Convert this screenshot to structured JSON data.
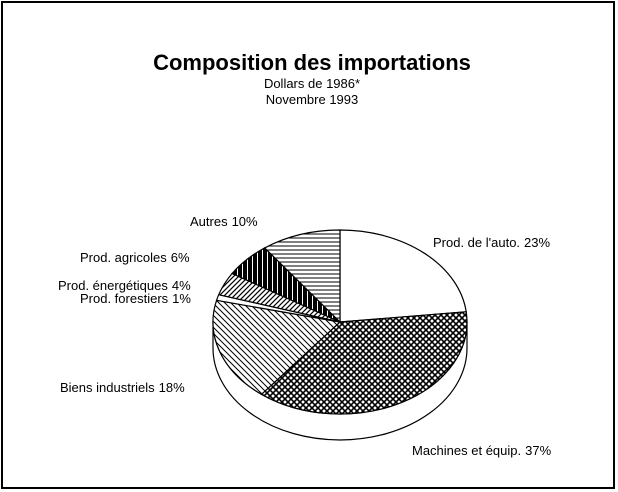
{
  "chart_data": {
    "type": "pie",
    "title": "Composition des importations",
    "subtitle": [
      "Dollars de 1986*",
      "Novembre 1993"
    ],
    "categories": [
      "Prod. de l'auto.",
      "Machines et équip.",
      "Biens industriels",
      "Prod. forestiers",
      "Prod. énergétiques",
      "Prod. agricoles",
      "Autres"
    ],
    "values": [
      23,
      37,
      18,
      1,
      4,
      6,
      10
    ],
    "value_labels": [
      "23%",
      "37%",
      "18%",
      "1%",
      "4%",
      "6%",
      "10%"
    ]
  }
}
